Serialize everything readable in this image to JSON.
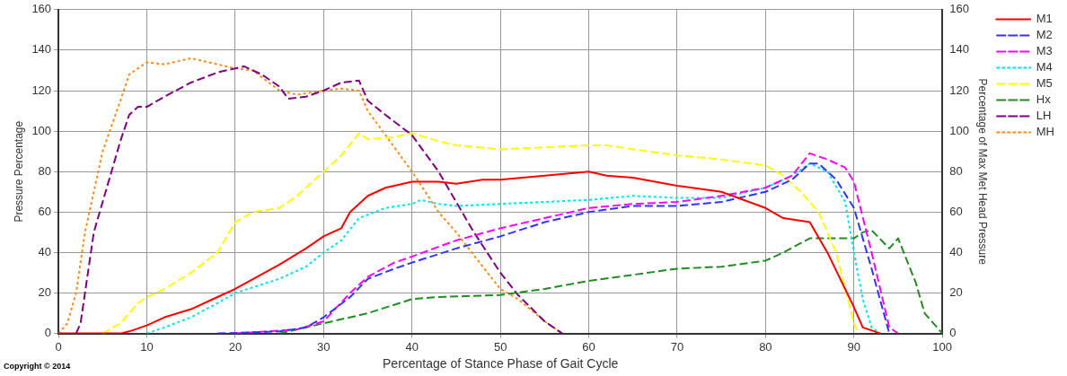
{
  "chart_data": {
    "type": "line",
    "xlabel": "Percentage of Stance Phase of Gait Cycle",
    "ylabel": "Pressure Percentage",
    "y2label": "Percentage of Max Met Head Pressure",
    "xlim": [
      0,
      100
    ],
    "xticks": [
      0,
      10,
      20,
      30,
      40,
      50,
      60,
      70,
      80,
      90,
      100
    ],
    "ylim": [
      0,
      160
    ],
    "yticks": [
      0,
      20,
      40,
      60,
      80,
      100,
      120,
      140,
      160
    ],
    "y2lim": [
      0,
      160
    ],
    "y2ticks": [
      0,
      20,
      40,
      60,
      80,
      100,
      120,
      140,
      160
    ],
    "grid": true,
    "legend": "top right",
    "marker": "none",
    "annotations": [
      "Copyright © 2014"
    ],
    "series": [
      {
        "name": "M1",
        "color": "#ff0000",
        "line_style": "solid",
        "x": [
          0,
          7,
          8,
          10,
          12,
          15,
          18,
          20,
          25,
          28,
          30,
          32,
          33,
          35,
          37,
          40,
          43,
          45,
          48,
          50,
          55,
          60,
          62,
          65,
          70,
          75,
          80,
          82,
          85,
          87,
          90,
          91,
          93
        ],
        "values": [
          0,
          0,
          1,
          4,
          8,
          12,
          18,
          22,
          34,
          42,
          48,
          52,
          60,
          68,
          72,
          75,
          75,
          74,
          76,
          76,
          78,
          80,
          78,
          77,
          73,
          70,
          62,
          57,
          55,
          40,
          13,
          3,
          0
        ]
      },
      {
        "name": "M2",
        "color": "#3333ff",
        "line_style": "dashed",
        "x": [
          18,
          25,
          28,
          30,
          33,
          35,
          38,
          40,
          45,
          50,
          55,
          60,
          65,
          70,
          75,
          80,
          83,
          85,
          86,
          88,
          90,
          92,
          94
        ],
        "values": [
          0,
          1,
          3,
          8,
          18,
          27,
          32,
          35,
          42,
          48,
          55,
          60,
          63,
          63,
          65,
          70,
          76,
          84,
          84,
          76,
          62,
          32,
          0
        ]
      },
      {
        "name": "M3",
        "color": "#ff00ff",
        "line_style": "dashed",
        "x": [
          20,
          27,
          30,
          33,
          35,
          38,
          40,
          45,
          50,
          55,
          60,
          65,
          70,
          75,
          80,
          83,
          85,
          87,
          89,
          90,
          92,
          94,
          95
        ],
        "values": [
          0,
          2,
          6,
          20,
          28,
          35,
          38,
          46,
          52,
          57,
          62,
          64,
          65,
          68,
          72,
          78,
          89,
          86,
          82,
          75,
          40,
          3,
          0
        ]
      },
      {
        "name": "M4",
        "color": "#00e5ee",
        "line_style": "dotted",
        "x": [
          10,
          12,
          15,
          18,
          20,
          25,
          28,
          30,
          32,
          34,
          37,
          40,
          41,
          43,
          45,
          50,
          55,
          60,
          65,
          70,
          75,
          80,
          83,
          85,
          87,
          89,
          90,
          91,
          92,
          93
        ],
        "values": [
          0,
          3,
          8,
          15,
          20,
          27,
          33,
          40,
          46,
          57,
          62,
          64,
          66,
          64,
          63,
          64,
          65,
          66,
          68,
          67,
          67,
          72,
          78,
          84,
          80,
          65,
          40,
          17,
          3,
          0
        ]
      },
      {
        "name": "M5",
        "color": "#ffff00",
        "line_style": "dashed",
        "x": [
          5,
          7,
          9,
          10,
          12,
          15,
          18,
          20,
          22,
          25,
          27,
          30,
          32,
          34,
          35,
          38,
          40,
          43,
          45,
          50,
          55,
          60,
          62,
          65,
          70,
          75,
          80,
          82,
          84,
          86,
          88,
          90,
          90.5
        ],
        "values": [
          0,
          5,
          15,
          18,
          22,
          30,
          40,
          55,
          60,
          62,
          68,
          80,
          88,
          99,
          96,
          97,
          99,
          95,
          93,
          91,
          92,
          93,
          93,
          91,
          88,
          86,
          83,
          78,
          70,
          60,
          40,
          5,
          0
        ]
      },
      {
        "name": "Hx",
        "color": "#228b22",
        "line_style": "dashed",
        "x": [
          25,
          28,
          30,
          35,
          40,
          43,
          50,
          55,
          60,
          65,
          70,
          75,
          80,
          82,
          85,
          90,
          91,
          92,
          94,
          95,
          97,
          98,
          100
        ],
        "values": [
          0,
          3,
          5,
          10,
          17,
          18,
          19,
          22,
          26,
          29,
          32,
          33,
          36,
          40,
          47,
          47,
          50,
          51,
          42,
          47,
          25,
          10,
          0
        ]
      },
      {
        "name": "LH",
        "color": "#800080",
        "line_style": "dashed",
        "x": [
          2,
          2.5,
          3,
          4,
          6,
          7,
          8,
          9,
          10,
          12,
          15,
          18,
          20,
          21,
          23,
          25,
          26,
          28,
          30,
          32,
          34,
          35,
          37,
          40,
          43,
          45,
          47,
          50,
          52,
          55,
          57
        ],
        "values": [
          0,
          5,
          20,
          50,
          80,
          95,
          108,
          112,
          112,
          117,
          124,
          129,
          131,
          132,
          128,
          122,
          116,
          117,
          120,
          124,
          125,
          115,
          108,
          98,
          80,
          65,
          50,
          30,
          19,
          6,
          0
        ]
      },
      {
        "name": "MH",
        "color": "#ff8c1a",
        "line_style": "dotted",
        "x": [
          0,
          1,
          2,
          3,
          4,
          5,
          7,
          8,
          10,
          12,
          15,
          18,
          20,
          22,
          25,
          27,
          30,
          32,
          34,
          35,
          37,
          40,
          43,
          45,
          48,
          50,
          52,
          55,
          57
        ],
        "values": [
          0,
          5,
          20,
          50,
          70,
          90,
          115,
          128,
          134,
          133,
          136,
          133,
          131,
          130,
          120,
          118,
          120,
          121,
          120,
          110,
          98,
          80,
          60,
          50,
          33,
          22,
          17,
          6,
          0
        ]
      }
    ]
  }
}
